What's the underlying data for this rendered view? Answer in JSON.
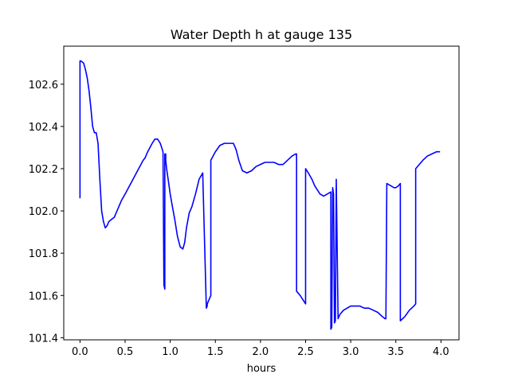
{
  "chart_data": {
    "type": "line",
    "title": "Water Depth h at gauge 135",
    "xlabel": "hours",
    "ylabel": "",
    "xlim": [
      -0.18,
      4.2
    ],
    "ylim": [
      101.39,
      102.78
    ],
    "xticks": [
      "0.0",
      "0.5",
      "1.0",
      "1.5",
      "2.0",
      "2.5",
      "3.0",
      "3.5",
      "4.0"
    ],
    "yticks": [
      "101.4",
      "101.6",
      "101.8",
      "102.0",
      "102.2",
      "102.4",
      "102.6"
    ],
    "grid": false,
    "series": [
      {
        "name": "",
        "color": "#0000ff",
        "x": [
          0.0,
          0.0,
          0.01,
          0.04,
          0.06,
          0.08,
          0.1,
          0.12,
          0.14,
          0.16,
          0.18,
          0.2,
          0.22,
          0.24,
          0.26,
          0.28,
          0.3,
          0.32,
          0.35,
          0.38,
          0.4,
          0.43,
          0.46,
          0.5,
          0.55,
          0.6,
          0.65,
          0.7,
          0.72,
          0.75,
          0.8,
          0.83,
          0.86,
          0.89,
          0.92,
          0.93,
          0.94,
          0.94,
          0.95,
          0.95,
          0.96,
          0.98,
          1.0,
          1.02,
          1.05,
          1.08,
          1.11,
          1.14,
          1.16,
          1.18,
          1.21,
          1.24,
          1.28,
          1.32,
          1.36,
          1.4,
          1.41,
          1.41,
          1.44,
          1.45,
          1.45,
          1.5,
          1.55,
          1.6,
          1.65,
          1.68,
          1.7,
          1.73,
          1.76,
          1.8,
          1.85,
          1.9,
          1.95,
          2.0,
          2.05,
          2.1,
          2.15,
          2.2,
          2.25,
          2.3,
          2.35,
          2.39,
          2.4,
          2.4,
          2.44,
          2.47,
          2.5,
          2.5,
          2.53,
          2.57,
          2.6,
          2.63,
          2.66,
          2.7,
          2.74,
          2.78,
          2.78,
          2.79,
          2.8,
          2.81,
          2.82,
          2.83,
          2.84,
          2.84,
          2.86,
          2.87,
          2.87,
          2.88,
          2.92,
          2.96,
          3.0,
          3.05,
          3.1,
          3.15,
          3.2,
          3.25,
          3.3,
          3.35,
          3.38,
          3.39,
          3.4,
          3.44,
          3.48,
          3.5,
          3.53,
          3.55,
          3.55,
          3.6,
          3.65,
          3.7,
          3.72,
          3.72,
          3.76,
          3.8,
          3.85,
          3.9,
          3.95,
          3.99
        ],
        "y": [
          102.06,
          102.71,
          102.71,
          102.7,
          102.67,
          102.63,
          102.57,
          102.49,
          102.4,
          102.37,
          102.37,
          102.32,
          102.15,
          102.0,
          101.95,
          101.92,
          101.93,
          101.95,
          101.96,
          101.97,
          101.99,
          102.02,
          102.05,
          102.08,
          102.12,
          102.16,
          102.2,
          102.24,
          102.25,
          102.28,
          102.32,
          102.34,
          102.34,
          102.32,
          102.28,
          101.65,
          101.63,
          102.27,
          102.27,
          102.24,
          102.2,
          102.14,
          102.08,
          102.03,
          101.96,
          101.88,
          101.83,
          101.82,
          101.85,
          101.92,
          101.99,
          102.02,
          102.08,
          102.15,
          102.18,
          101.54,
          101.55,
          101.56,
          101.59,
          101.6,
          102.24,
          102.28,
          102.31,
          102.32,
          102.32,
          102.32,
          102.32,
          102.29,
          102.24,
          102.19,
          102.18,
          102.19,
          102.21,
          102.22,
          102.23,
          102.23,
          102.23,
          102.22,
          102.22,
          102.24,
          102.26,
          102.27,
          102.27,
          101.62,
          101.6,
          101.58,
          101.56,
          102.2,
          102.18,
          102.15,
          102.12,
          102.1,
          102.08,
          102.07,
          102.08,
          102.09,
          101.44,
          101.45,
          102.11,
          102.08,
          101.47,
          101.48,
          102.14,
          102.15,
          101.49,
          101.5,
          101.5,
          101.51,
          101.53,
          101.54,
          101.55,
          101.55,
          101.55,
          101.54,
          101.54,
          101.53,
          101.52,
          101.5,
          101.49,
          101.49,
          102.13,
          102.12,
          102.11,
          102.11,
          102.12,
          102.13,
          101.48,
          101.5,
          101.53,
          101.55,
          101.56,
          102.2,
          102.22,
          102.24,
          102.26,
          102.27,
          102.28,
          102.28
        ]
      }
    ]
  }
}
